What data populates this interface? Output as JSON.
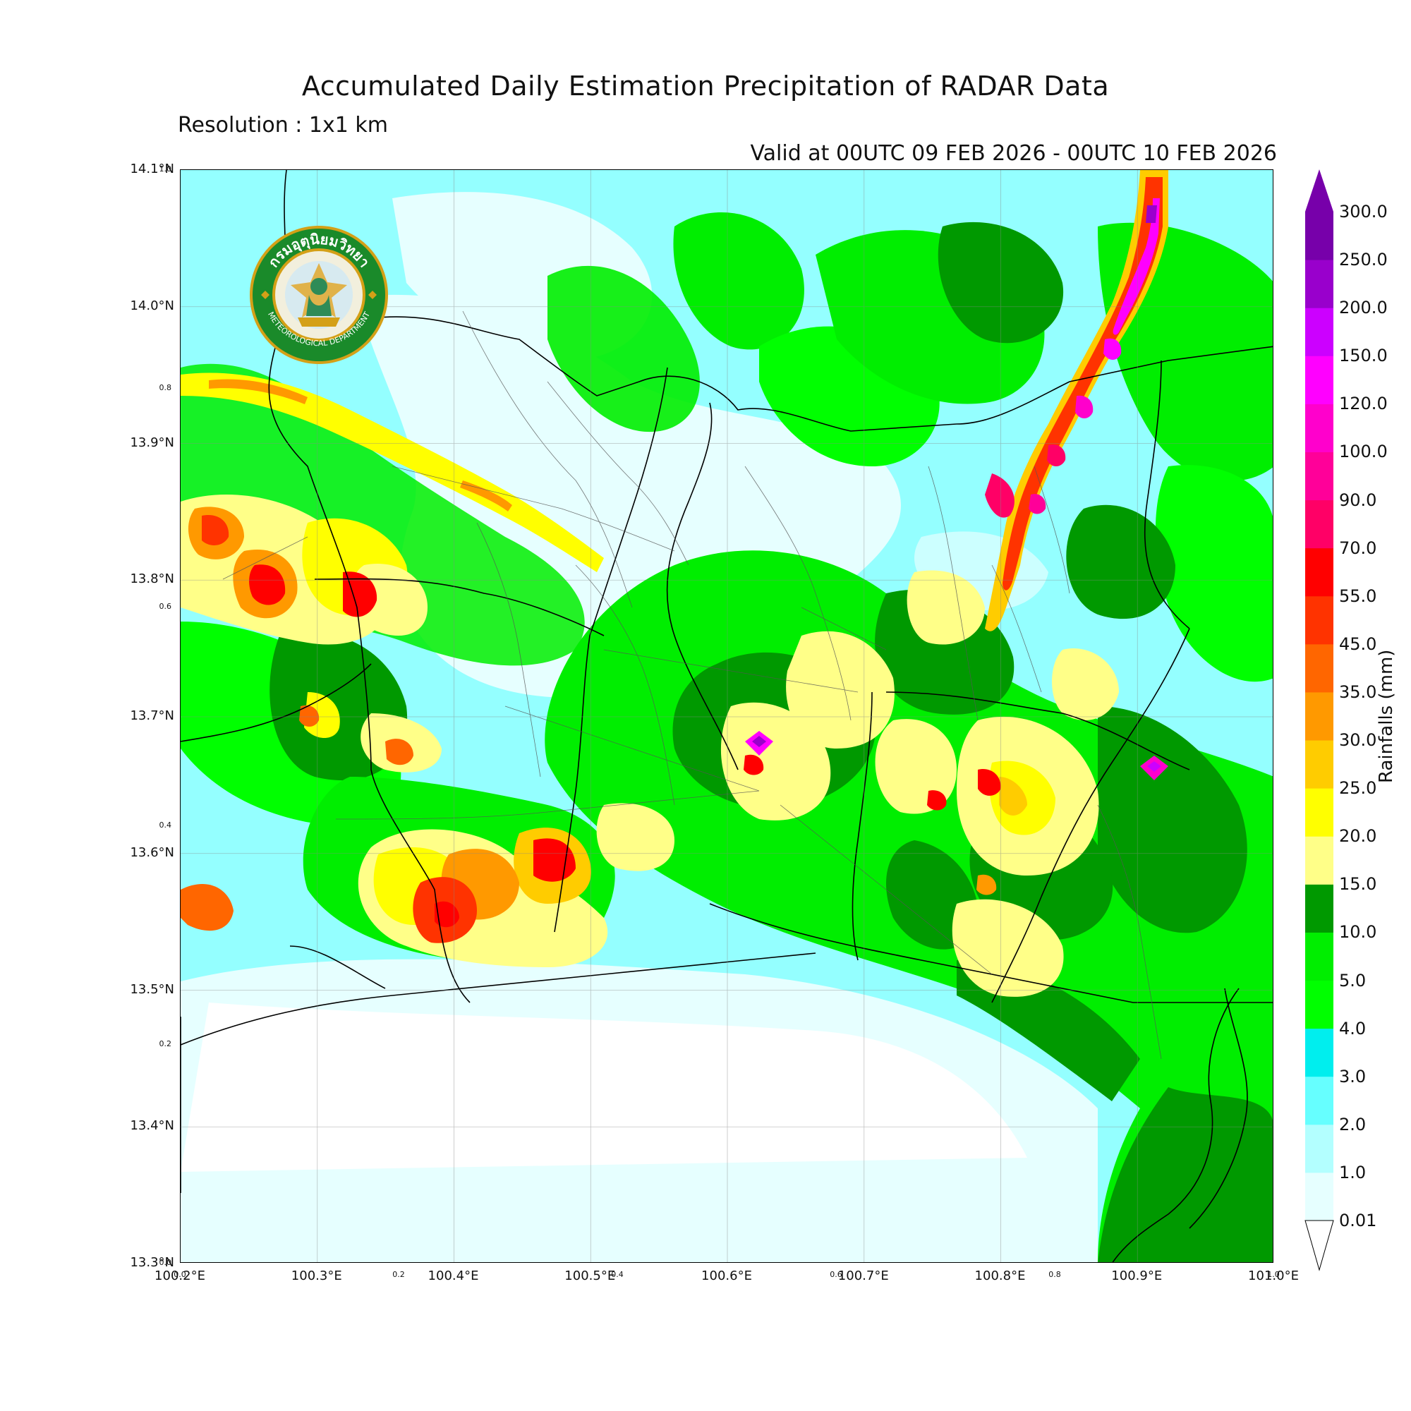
{
  "header": {
    "title": "Accumulated Daily Estimation Precipitation of RADAR Data",
    "resolution": "Resolution : 1x1 km",
    "valid": "Valid at 00UTC 09 FEB 2026 - 00UTC 10 FEB 2026"
  },
  "logo": {
    "top_text": "กรมอุตุนิยมวิทยา",
    "bottom_text": "METEOROLOGICAL DEPARTMENT",
    "colors": {
      "ring": "#1a8a2a",
      "gold": "#d4a017",
      "inner": "#f2efdd"
    }
  },
  "map": {
    "lat_labels": [
      "14.1°N",
      "14.0°N",
      "13.9°N",
      "13.8°N",
      "13.7°N",
      "13.6°N",
      "13.5°N",
      "13.4°N",
      "13.3°N"
    ],
    "lon_labels": [
      "100.2°E",
      "100.3°E",
      "100.4°E",
      "100.5°E",
      "100.6°E",
      "100.7°E",
      "100.8°E",
      "100.9°E",
      "101.0°E"
    ],
    "minor_left": [
      "1.0",
      "0.8",
      "0.6",
      "0.4",
      "0.2",
      "0.0"
    ],
    "minor_bottom": [
      "0.0",
      "0.2",
      "0.4",
      "0.6",
      "0.8",
      "1.0"
    ],
    "background_color": "#ccffff"
  },
  "colorbar": {
    "title": "Rainfalls (mm)",
    "levels": [
      "0.01",
      "1.0",
      "2.0",
      "3.0",
      "4.0",
      "5.0",
      "10.0",
      "15.0",
      "20.0",
      "25.0",
      "30.0",
      "35.0",
      "45.0",
      "55.0",
      "70.0",
      "90.0",
      "100.0",
      "120.0",
      "150.0",
      "200.0",
      "250.0",
      "300.0"
    ],
    "colors": [
      "#e6ffff",
      "#b3ffff",
      "#66ffff",
      "#00eeee",
      "#00ff00",
      "#00ee00",
      "#009900",
      "#ffff88",
      "#ffff00",
      "#ffcc00",
      "#ff9900",
      "#ff6600",
      "#ff3300",
      "#ff0000",
      "#ff0066",
      "#ff0099",
      "#ff00cc",
      "#ff00ff",
      "#cc00ff",
      "#9900cc",
      "#7700aa"
    ]
  }
}
